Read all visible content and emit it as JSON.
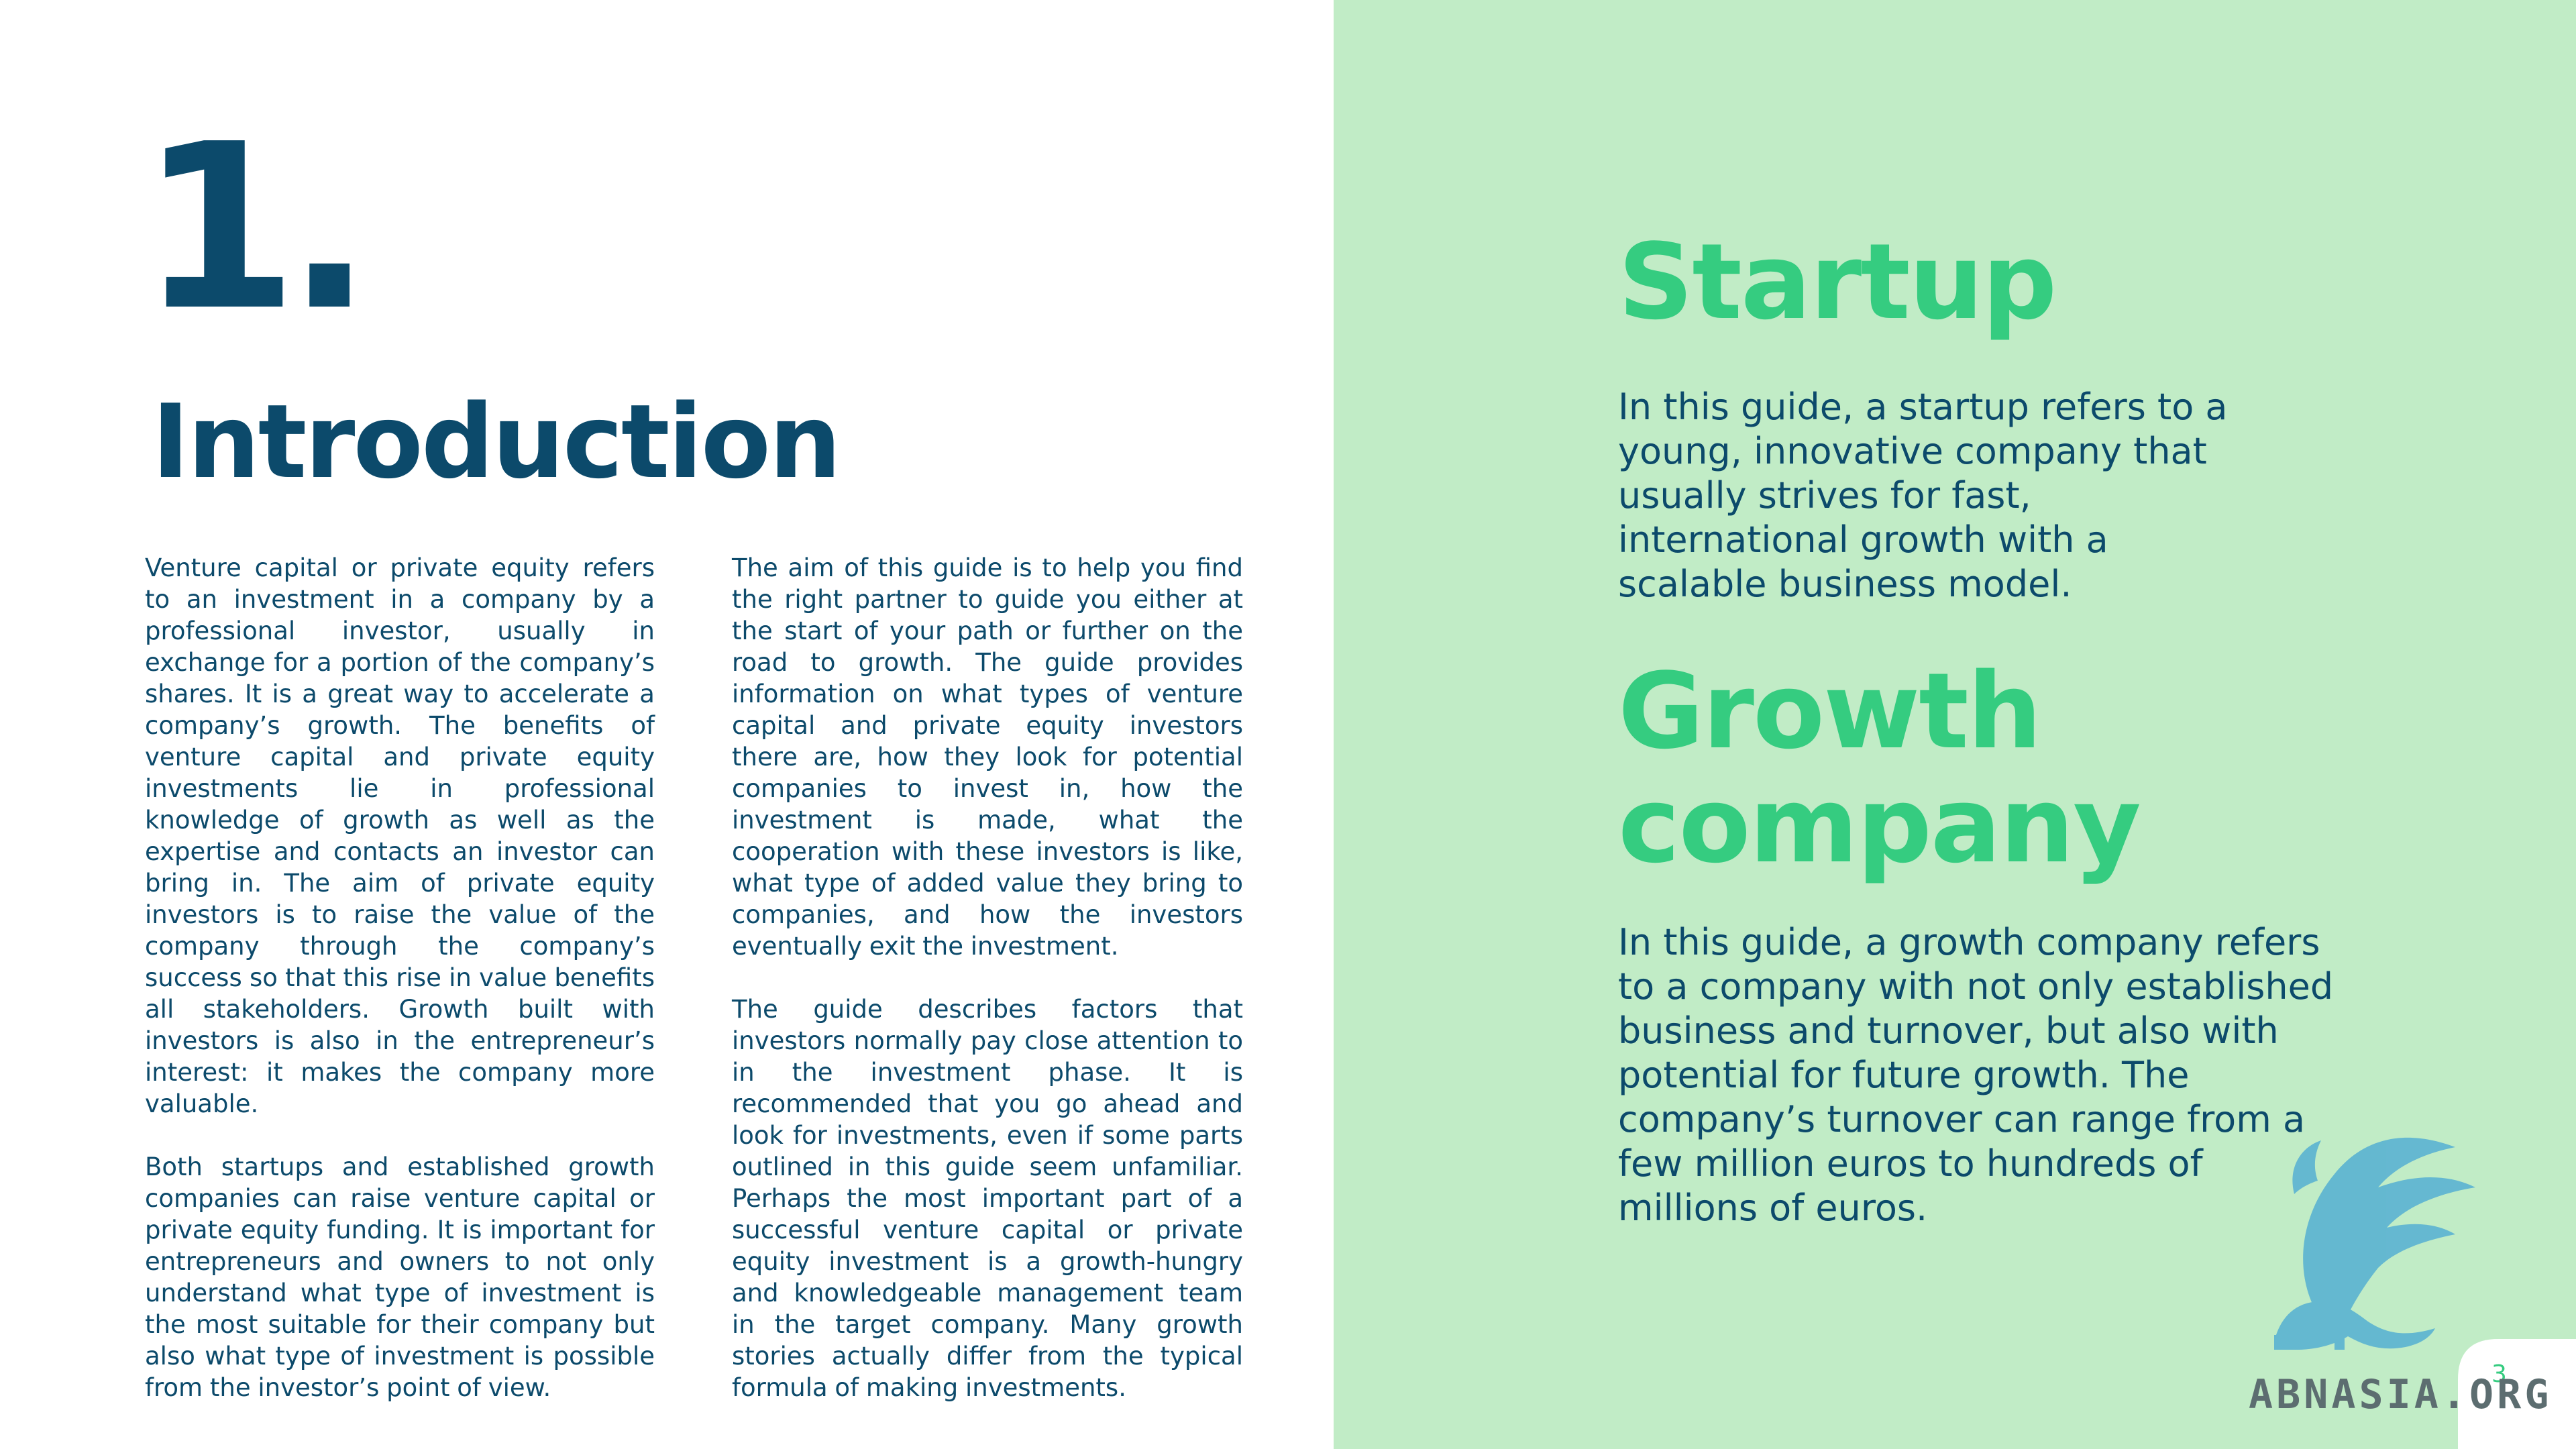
{
  "page": {
    "chapter_number": "1.",
    "title": "Introduction",
    "page_number": "3"
  },
  "body": {
    "left_column": [
      "Venture capital or private equity refers to an investment in a company by a professional investor, usually in exchange for a portion of the company’s shares. It is a great way to accelerate a company’s growth. The benefits of venture capital and private equity investments lie in professional knowledge of growth as well as the expertise and contacts an investor can bring in. The aim of private equity investors is to raise the value of the company through the company’s success so that this rise in value benefits all stakeholders. Growth built with investors is also in the entrepreneur’s interest: it makes the company more valuable.",
      "Both startups and established growth companies can raise venture capital or private equity funding. It is important for entrepreneurs and owners to not only understand what type of investment is the most suitable for their company but also what type of investment is possible from the investor’s point of view."
    ],
    "right_column": [
      "The aim of this guide is to help you find the right partner to guide you either at the start of your path or further on the road to growth. The guide provides information on what types of venture capital and private equity investors there are, how they look for potential companies to invest in, how the investment is made, what the cooperation with these investors is like, what type of added value they bring to companies, and how the investors eventually exit the investment.",
      "The guide describes factors that investors normally pay close attention to in the investment phase. It is recommended that you go ahead and look for investments, even if some parts outlined in this guide seem unfamiliar. Perhaps the most important part of a successful venture capital or private equity investment is a growth-hungry and knowledgeable management team in the target company. Many growth stories actually differ from the typical formula of making investments."
    ]
  },
  "sidebar": {
    "startup": {
      "term": "Startup",
      "definition": "In this guide, a startup refers to a young, innovative company that usually strives for fast, international growth with a scalable business model."
    },
    "growth": {
      "term_line1": "Growth",
      "term_line2": "company",
      "definition": "In this guide, a growth company refers to a company with not only established business and turnover, but also with potential for future growth. The company’s turnover can range from a few million euros to hundreds of millions of euros."
    }
  },
  "watermark": {
    "text": "ABNASIA.ORG",
    "icon": "griffin-emblem-icon"
  },
  "colors": {
    "navy": "#0c4a6b",
    "green_heading": "#35cc80",
    "panel_bg": "#c1ecc6",
    "watermark_blue": "#5bb3d2"
  }
}
